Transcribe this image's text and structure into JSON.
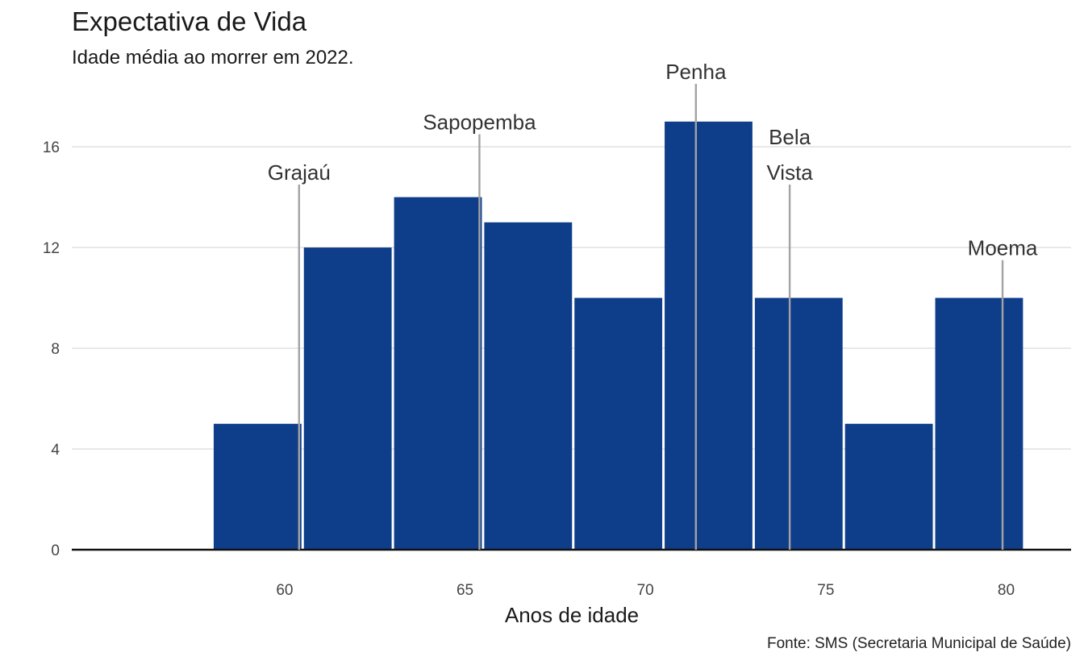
{
  "chart_data": {
    "type": "bar",
    "title": "Expectativa de Vida",
    "subtitle": "Idade média ao morrer em 2022.",
    "xlabel": "Anos de idade",
    "ylabel": "",
    "caption": "Fonte: SMS (Secretaria Municipal de Saúde)",
    "bin_width": 2.5,
    "bins": [
      {
        "start": 58.0,
        "end": 60.5,
        "count": 5
      },
      {
        "start": 60.5,
        "end": 63.0,
        "count": 12
      },
      {
        "start": 63.0,
        "end": 65.5,
        "count": 14
      },
      {
        "start": 65.5,
        "end": 68.0,
        "count": 13
      },
      {
        "start": 68.0,
        "end": 70.5,
        "count": 10
      },
      {
        "start": 70.5,
        "end": 73.0,
        "count": 17
      },
      {
        "start": 73.0,
        "end": 75.5,
        "count": 10
      },
      {
        "start": 75.5,
        "end": 78.0,
        "count": 5
      },
      {
        "start": 78.0,
        "end": 80.5,
        "count": 10
      }
    ],
    "xlim": [
      54.1,
      81.8
    ],
    "ylim": [
      0,
      18.5
    ],
    "x_ticks": [
      60,
      65,
      70,
      75,
      80
    ],
    "x_tick_labels": [
      "60",
      "65",
      "70",
      "75",
      "80"
    ],
    "y_ticks": [
      0,
      4,
      8,
      12,
      16
    ],
    "y_tick_labels": [
      "0",
      "4",
      "8",
      "12",
      "16"
    ],
    "grid": "horizontal",
    "bar_color": "#0e3d8a",
    "annotations": [
      {
        "lines": [
          "Grajaú"
        ],
        "x": 60.4,
        "y_top": 14.5
      },
      {
        "lines": [
          "Sapopemba"
        ],
        "x": 65.4,
        "y_top": 16.5
      },
      {
        "lines": [
          "Penha"
        ],
        "x": 71.4,
        "y_top": 18.5
      },
      {
        "lines": [
          "Bela",
          "Vista"
        ],
        "x": 74.0,
        "y_top": 14.5
      },
      {
        "lines": [
          "Moema"
        ],
        "x": 79.9,
        "y_top": 11.5
      }
    ]
  }
}
